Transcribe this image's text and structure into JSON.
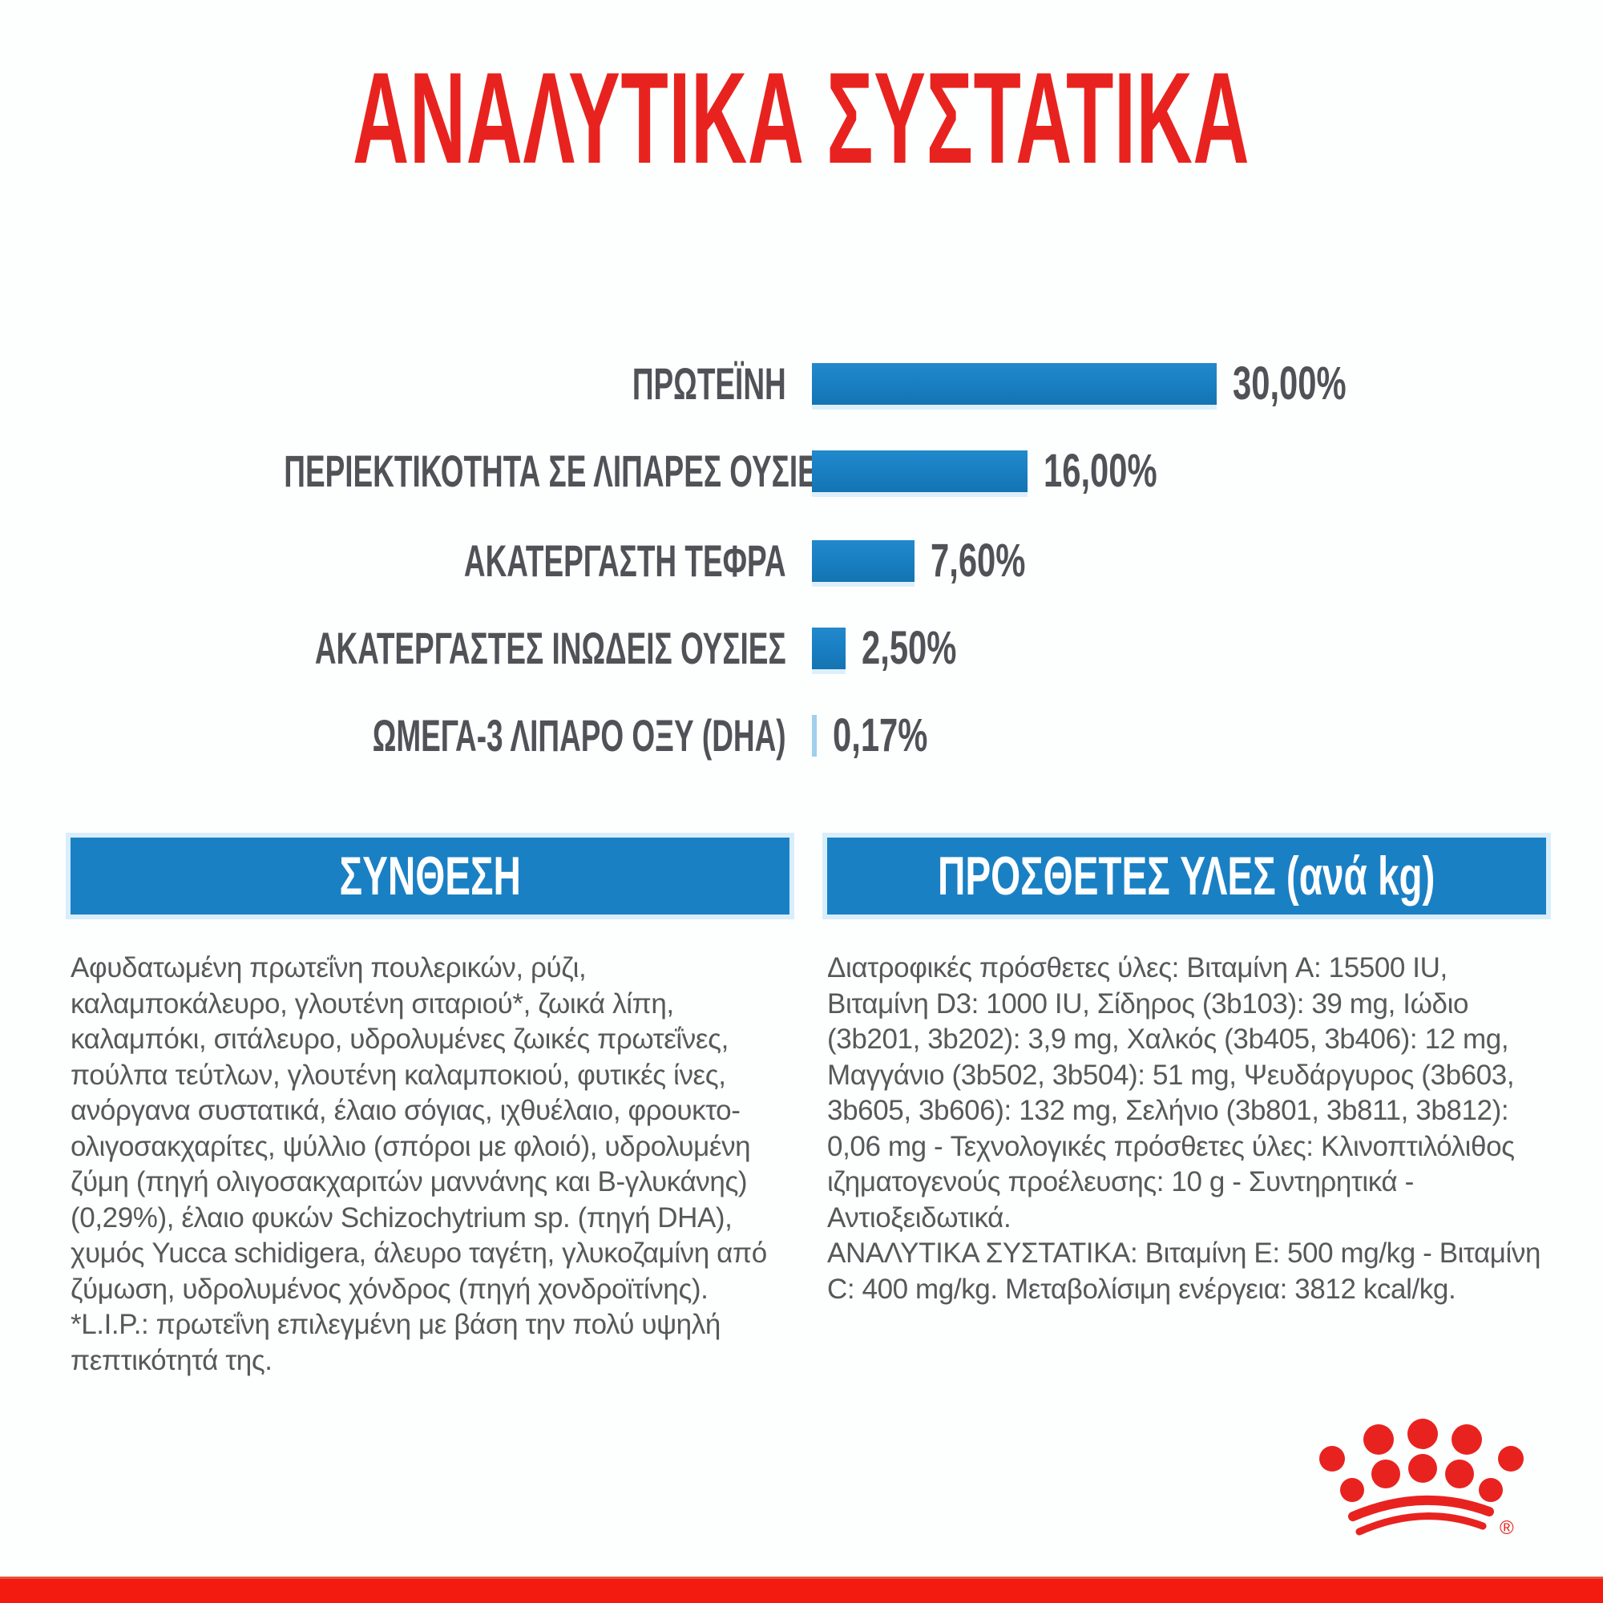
{
  "title": "ΑΝΑΛΥΤΙΚΑ ΣΥΣΤΑΤΙΚΑ",
  "colors": {
    "accent_red": "#e8231f",
    "bar_blue": "#1a80c4",
    "bar_blue_light": "#9fd0ec",
    "header_blue": "#1a80c4",
    "label_text": "#515257",
    "body_text": "#58585a",
    "footer_red": "#f31b10"
  },
  "chart_data": {
    "type": "bar",
    "orientation": "horizontal",
    "unit": "%",
    "title": "ΑΝΑΛΥΤΙΚΑ ΣΥΣΤΑΤΙΚΑ",
    "categories": [
      "ΠΡΩΤΕΪΝΗ",
      "ΠΕΡΙΕΚΤΙΚΟΤΗΤΑ ΣΕ ΛΙΠΑΡΕΣ ΟΥΣΙΕΣ",
      "ΑΚΑΤΕΡΓΑΣΤΗ ΤΕΦΡΑ",
      "ΑΚΑΤΕΡΓΑΣΤΕΣ ΙΝΩΔΕΙΣ ΟΥΣΙΕΣ",
      "ΩΜΕΓΑ-3 ΛΙΠΑΡΟ ΟΞΥ (DHA)"
    ],
    "values": [
      30.0,
      16.0,
      7.6,
      2.5,
      0.17
    ],
    "value_labels": [
      "30,00%",
      "16,00%",
      "7,60%",
      "2,50%",
      "0,17%"
    ],
    "xlim": [
      0,
      32
    ],
    "legend": false,
    "grid": false
  },
  "composition": {
    "header": "ΣΥΝΘΕΣΗ",
    "lines": [
      "Αφυδατωμένη πρωτεΐνη πουλερικών, ρύζι,",
      "καλαμποκάλευρο, γλουτένη σιταριού*, ζωικά λίπη,",
      "καλαμπόκι, σιτάλευρο, υδρολυμένες ζωικές πρωτεΐνες,",
      "πούλπα τεύτλων, γλουτένη καλαμποκιού, φυτικές ίνες,",
      "ανόργανα συστατικά, έλαιο σόγιας, ιχθυέλαιο, φρουκτο-",
      "ολιγοσακχαρίτες, ψύλλιο (σπόροι με φλοιό), υδρολυμένη",
      "ζύμη (πηγή ολιγοσακχαριτών μαννάνης και Β-γλυκάνης)",
      "(0,29%), έλαιο φυκών Schizochytrium sp. (πηγή DHA),",
      "χυμός Yucca schidigera, άλευρο ταγέτη, γλυκοζαμίνη από",
      "ζύμωση, υδρολυμένος χόνδρος (πηγή χονδροϊτίνης).",
      "*L.I.P.: πρωτεΐνη επιλεγμένη με βάση την πολύ υψηλή",
      "πεπτικότητά της."
    ]
  },
  "additives": {
    "header": "ΠΡΟΣΘΕΤΕΣ ΥΛΕΣ (ανά kg)",
    "lines": [
      "Διατροφικές πρόσθετες ύλες: Βιταμίνη A: 15500 IU,",
      "Βιταμίνη D3: 1000 IU, Σίδηρος (3b103): 39 mg, Ιώδιο",
      "(3b201, 3b202): 3,9 mg, Χαλκός (3b405, 3b406): 12 mg,",
      "Μαγγάνιο (3b502, 3b504): 51 mg, Ψευδάργυρος (3b603,",
      "3b605, 3b606): 132 mg, Σελήνιο (3b801, 3b811, 3b812):",
      "0,06 mg - Τεχνολογικές πρόσθετες ύλες: Κλινοπτιλόλιθος",
      "ιζηματογενούς προέλευσης: 10 g - Συντηρητικά -",
      "Αντιοξειδωτικά.",
      "ΑΝΑΛΥΤΙΚΑ ΣΥΣΤΑΤΙΚΑ: Βιταμίνη E: 500 mg/kg - Βιταμίνη",
      "C: 400 mg/kg. Μεταβολίσιμη ενέργεια: 3812 kcal/kg."
    ]
  },
  "logo": "royal-canin-crown"
}
